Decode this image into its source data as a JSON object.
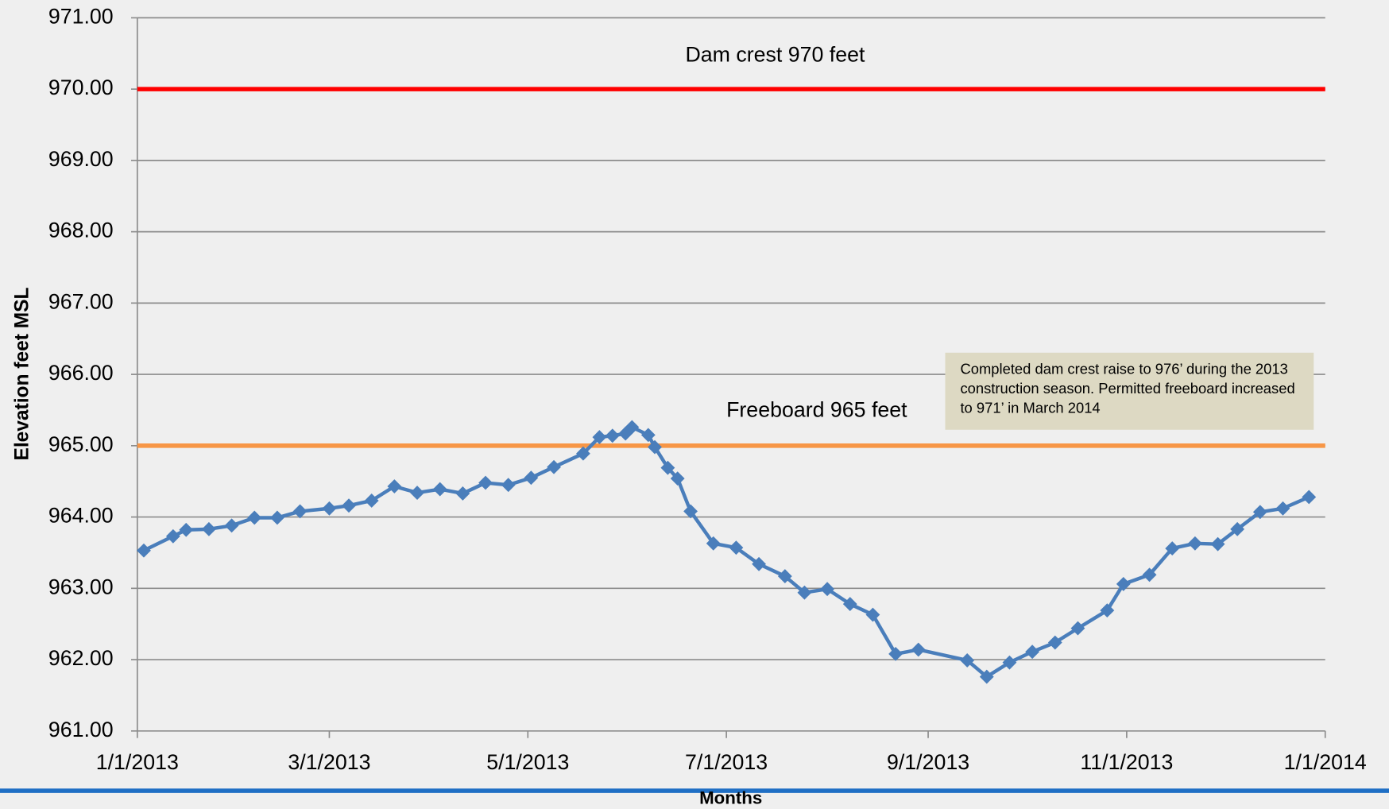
{
  "chart_data": {
    "type": "line",
    "y_axis_label": "Elevation feet MSL",
    "x_axis_label": "Months",
    "ylim": [
      961,
      971
    ],
    "yticks": [
      {
        "value": 961,
        "label": "961.00"
      },
      {
        "value": 962,
        "label": "962.00"
      },
      {
        "value": 963,
        "label": "963.00"
      },
      {
        "value": 964,
        "label": "964.00"
      },
      {
        "value": 965,
        "label": "965.00"
      },
      {
        "value": 966,
        "label": "966.00"
      },
      {
        "value": 967,
        "label": "967.00"
      },
      {
        "value": 968,
        "label": "968.00"
      },
      {
        "value": 969,
        "label": "969.00"
      },
      {
        "value": 970,
        "label": "970.00"
      },
      {
        "value": 971,
        "label": "971.00"
      }
    ],
    "xlim": [
      "1/1/2013",
      "1/1/2014"
    ],
    "xticks": [
      "1/1/2013",
      "3/1/2013",
      "5/1/2013",
      "7/1/2013",
      "9/1/2013",
      "11/1/2013",
      "1/1/2014"
    ],
    "grid": true,
    "x": [
      "1/3/2013",
      "1/12/2013",
      "1/16/2013",
      "1/23/2013",
      "1/30/2013",
      "2/6/2013",
      "2/13/2013",
      "2/20/2013",
      "3/1/2013",
      "3/7/2013",
      "3/14/2013",
      "3/21/2013",
      "3/28/2013",
      "4/4/2013",
      "4/11/2013",
      "4/18/2013",
      "4/25/2013",
      "5/2/2013",
      "5/9/2013",
      "5/18/2013",
      "5/23/2013",
      "5/27/2013",
      "5/31/2013",
      "6/2/2013",
      "6/7/2013",
      "6/9/2013",
      "6/13/2013",
      "6/16/2013",
      "6/20/2013",
      "6/27/2013",
      "7/4/2013",
      "7/11/2013",
      "7/19/2013",
      "7/25/2013",
      "8/1/2013",
      "8/8/2013",
      "8/15/2013",
      "8/22/2013",
      "8/29/2013",
      "9/13/2013",
      "9/19/2013",
      "9/26/2013",
      "10/3/2013",
      "10/10/2013",
      "10/17/2013",
      "10/26/2013",
      "10/31/2013",
      "11/8/2013",
      "11/15/2013",
      "11/22/2013",
      "11/29/2013",
      "12/5/2013",
      "12/12/2013",
      "12/19/2013",
      "12/27/2013"
    ],
    "series": [
      {
        "color": "#4a7ebb",
        "values": [
          963.53,
          963.73,
          963.82,
          963.83,
          963.88,
          963.99,
          963.99,
          964.08,
          964.12,
          964.16,
          964.23,
          964.43,
          964.34,
          964.39,
          964.33,
          964.48,
          964.45,
          964.55,
          964.7,
          964.89,
          965.12,
          965.14,
          965.17,
          965.26,
          965.15,
          964.98,
          964.69,
          964.54,
          964.08,
          963.63,
          963.57,
          963.34,
          963.17,
          962.94,
          962.99,
          962.78,
          962.63,
          962.08,
          962.14,
          961.99,
          961.76,
          961.96,
          962.11,
          962.24,
          962.44,
          962.69,
          963.06,
          963.19,
          963.56,
          963.63,
          963.62,
          963.83,
          964.07,
          964.12,
          964.28
        ]
      }
    ],
    "reference_lines": [
      {
        "label": "Dam crest 970 feet",
        "value": 970,
        "color": "#ff0000"
      },
      {
        "label": "Freeboard 965 feet",
        "value": 965,
        "color": "#f79646"
      }
    ],
    "annotation": "Completed dam crest raise to 976’ during the 2013 construction season.  Permitted freeboard increased to 971’ in March 2014"
  }
}
